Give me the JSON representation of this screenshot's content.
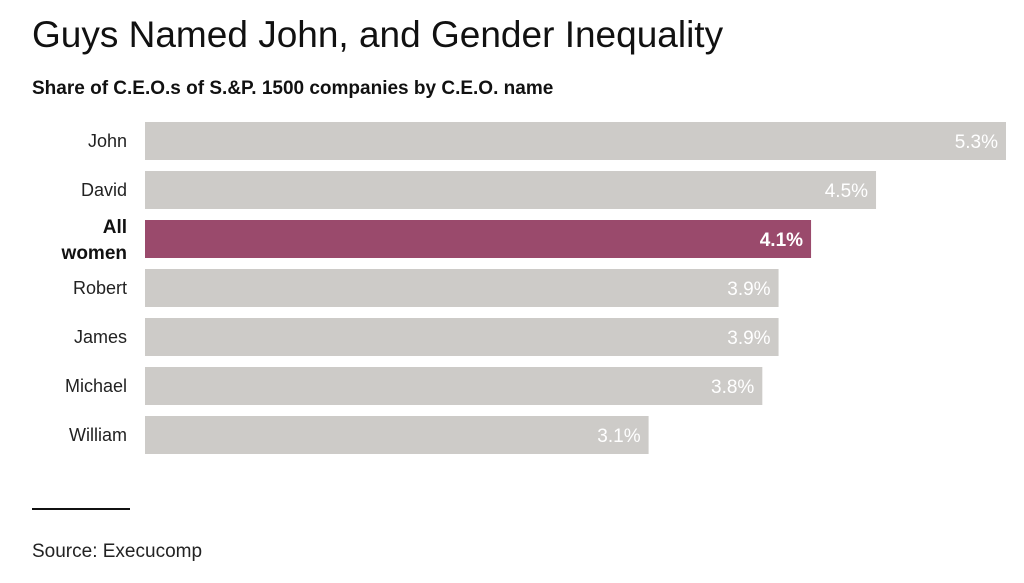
{
  "title": "Guys Named John, and Gender Inequality",
  "subtitle": "Share of C.E.O.s of S.&P. 1500 companies by C.E.O. name",
  "source": "Source: Execucomp",
  "colors": {
    "bar": "#cdcbc8",
    "highlight": "#9a4a6c",
    "bar_label": "#ffffff",
    "category_label": "#222222"
  },
  "chart_data": {
    "type": "bar",
    "orientation": "horizontal",
    "categories": [
      "John",
      "David",
      "All women",
      "Robert",
      "James",
      "Michael",
      "William"
    ],
    "values": [
      5.3,
      4.5,
      4.1,
      3.9,
      3.9,
      3.8,
      3.1
    ],
    "value_labels": [
      "5.3%",
      "4.5%",
      "4.1%",
      "3.9%",
      "3.9%",
      "3.8%",
      "3.1%"
    ],
    "highlight_category": "All women",
    "xlim": [
      0,
      5.3
    ],
    "grid": false,
    "legend": false,
    "xlabel": "",
    "ylabel": ""
  }
}
